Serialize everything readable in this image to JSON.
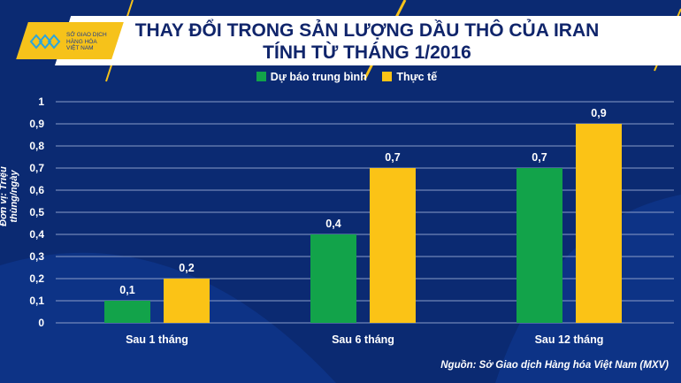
{
  "logo": {
    "lines": [
      "SỞ GIAO DỊCH",
      "HÀNG HÓA",
      "VIỆT NAM"
    ]
  },
  "title_lines": [
    "THAY ĐỔI TRONG SẢN LƯỢNG DẦU THÔ CỦA IRAN",
    "TÍNH TỪ THÁNG 1/2016"
  ],
  "source": "Nguồn: Sở Giao dịch Hàng hóa Việt Nam (MXV)",
  "colors": {
    "forecast": "#12a34a",
    "actual": "#fbc316",
    "background": "#0b2a72"
  },
  "chart_data": {
    "type": "bar",
    "title": "THAY ĐỔI TRONG SẢN LƯỢNG DẦU THÔ CỦA IRAN TÍNH TỪ THÁNG 1/2016",
    "ylabel": "Đơn vị: Triệu thùng/ngày",
    "xlabel": "",
    "ylim": [
      0,
      1
    ],
    "yticks": [
      "0",
      "0,1",
      "0,2",
      "0,3",
      "0,4",
      "0,5",
      "0,6",
      "0,7",
      "0,8",
      "0,9",
      "1"
    ],
    "categories": [
      "Sau 1 tháng",
      "Sau 6 tháng",
      "Sau 12 tháng"
    ],
    "series": [
      {
        "name": "Dự báo trung bình",
        "values": [
          0.1,
          0.4,
          0.7
        ],
        "labels": [
          "0,1",
          "0,4",
          "0,7"
        ]
      },
      {
        "name": "Thực tế",
        "values": [
          0.2,
          0.7,
          0.9
        ],
        "labels": [
          "0,2",
          "0,7",
          "0,9"
        ]
      }
    ],
    "legend": "top-center",
    "grid": true
  }
}
